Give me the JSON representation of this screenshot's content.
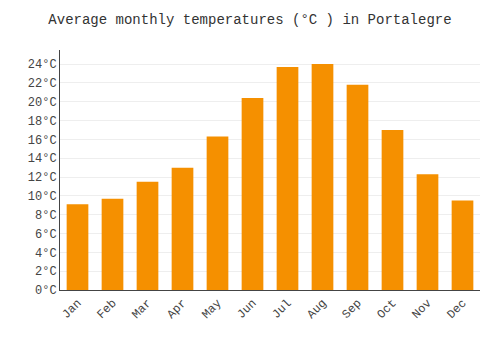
{
  "chart_data": {
    "type": "bar",
    "title": "Average monthly temperatures (°C ) in Portalegre",
    "categories": [
      "Jan",
      "Feb",
      "Mar",
      "Apr",
      "May",
      "Jun",
      "Jul",
      "Aug",
      "Sep",
      "Oct",
      "Nov",
      "Dec"
    ],
    "values": [
      9.1,
      9.7,
      11.5,
      13.0,
      16.3,
      20.4,
      23.7,
      24.0,
      21.8,
      17.0,
      12.3,
      9.5
    ],
    "color": "#F59000",
    "ylim": [
      0,
      25.5
    ],
    "yticks": [
      {
        "value": 0,
        "label": "0°C"
      },
      {
        "value": 2,
        "label": "2°C"
      },
      {
        "value": 4,
        "label": "4°C"
      },
      {
        "value": 6,
        "label": "6°C"
      },
      {
        "value": 8,
        "label": "8°C"
      },
      {
        "value": 10,
        "label": "10°C"
      },
      {
        "value": 12,
        "label": "12°C"
      },
      {
        "value": 14,
        "label": "14°C"
      },
      {
        "value": 16,
        "label": "16°C"
      },
      {
        "value": 18,
        "label": "18°C"
      },
      {
        "value": 20,
        "label": "20°C"
      },
      {
        "value": 22,
        "label": "22°C"
      },
      {
        "value": 24,
        "label": "24°C"
      }
    ],
    "grid": true
  }
}
